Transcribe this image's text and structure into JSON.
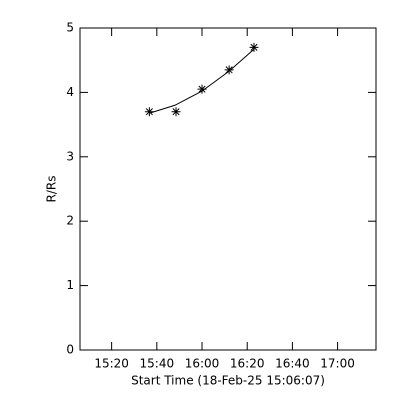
{
  "chart_data": {
    "type": "scatter",
    "xlabel": "Start Time (18-Feb-25 15:06:07)",
    "ylabel": "R/Rs",
    "x": [
      936.7,
      948.5,
      960,
      972,
      983
    ],
    "values": [
      3.7,
      3.7,
      4.05,
      4.35,
      4.7
    ],
    "marker": "asterisk",
    "color": "#000000",
    "fit": {
      "x": [
        937,
        948,
        960,
        972,
        983
      ],
      "values": [
        3.68,
        3.8,
        4.02,
        4.33,
        4.67
      ]
    },
    "xlim": [
      906,
      1037
    ],
    "xticks": [
      {
        "value": 920,
        "label": "15:20"
      },
      {
        "value": 940,
        "label": "15:40"
      },
      {
        "value": 960,
        "label": "16:00"
      },
      {
        "value": 980,
        "label": "16:20"
      },
      {
        "value": 1000,
        "label": "16:40"
      },
      {
        "value": 1020,
        "label": "17:00"
      }
    ],
    "ylim": [
      0,
      5
    ],
    "yticks": [
      0,
      1,
      2,
      3,
      4,
      5
    ]
  }
}
